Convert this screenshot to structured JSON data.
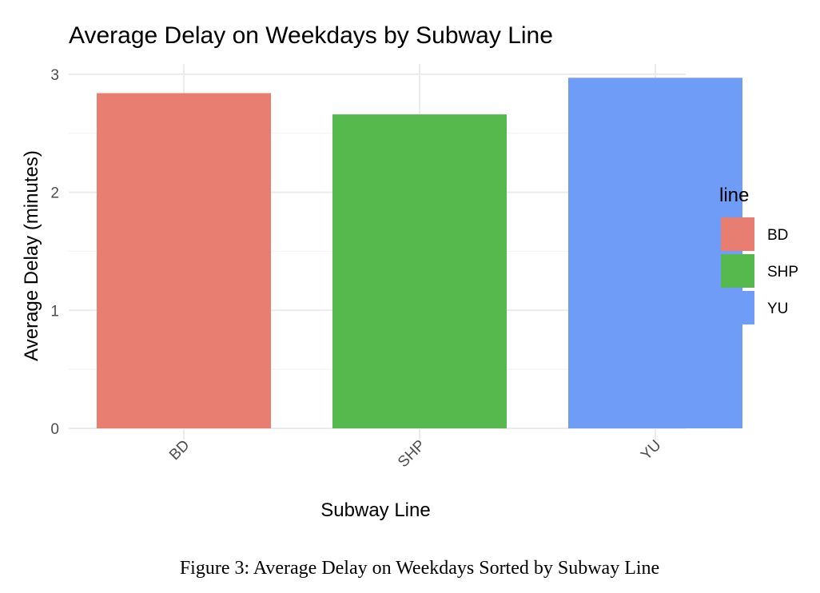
{
  "chart_data": {
    "type": "bar",
    "title": "Average Delay on Weekdays by Subway Line",
    "xlabel": "Subway Line",
    "ylabel": "Average Delay (minutes)",
    "categories": [
      "BD",
      "SHP",
      "YU"
    ],
    "values": [
      2.84,
      2.66,
      2.97
    ],
    "colors": [
      "#e87d72",
      "#56b94d",
      "#6f9cf7"
    ],
    "ylim": [
      0,
      3.0
    ],
    "yticks": [
      0,
      1,
      2,
      3
    ],
    "grid": true,
    "legend": {
      "title": "line",
      "placement": "right",
      "entries": [
        "BD",
        "SHP",
        "YU"
      ]
    }
  },
  "caption": "Figure 3: Average Delay on Weekdays Sorted by Subway Line"
}
